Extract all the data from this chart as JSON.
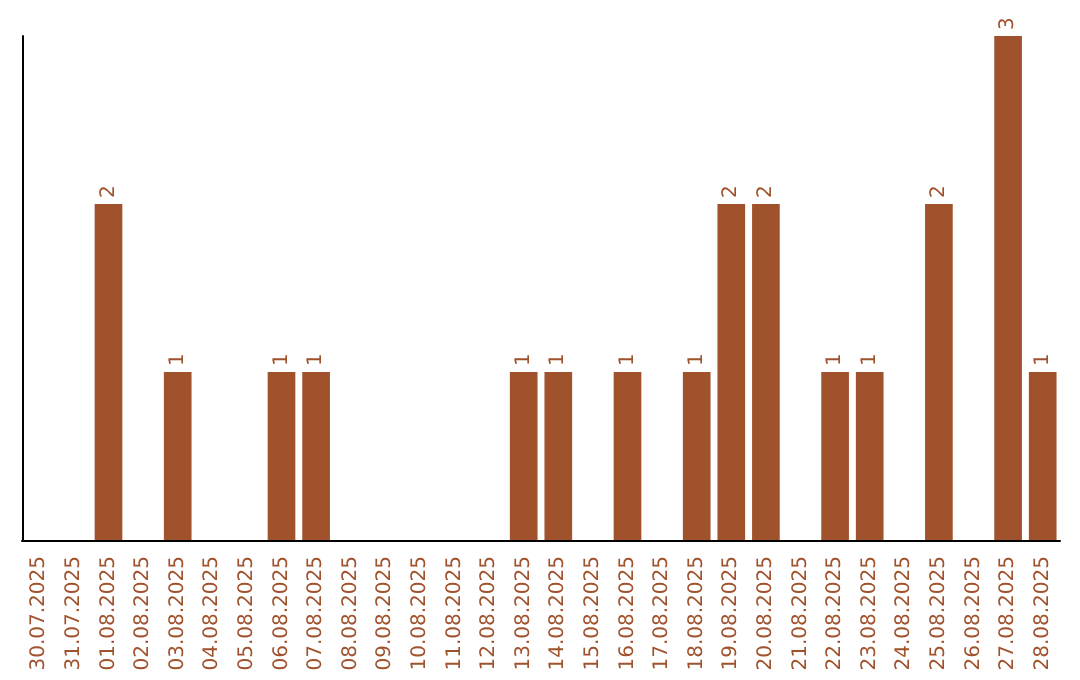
{
  "chart_data": {
    "type": "bar",
    "categories": [
      "30.07.2025",
      "31.07.2025",
      "01.08.2025",
      "02.08.2025",
      "03.08.2025",
      "04.08.2025",
      "05.08.2025",
      "06.08.2025",
      "07.08.2025",
      "08.08.2025",
      "09.08.2025",
      "10.08.2025",
      "11.08.2025",
      "12.08.2025",
      "13.08.2025",
      "14.08.2025",
      "15.08.2025",
      "16.08.2025",
      "17.08.2025",
      "18.08.2025",
      "19.08.2025",
      "20.08.2025",
      "21.08.2025",
      "22.08.2025",
      "23.08.2025",
      "24.08.2025",
      "25.08.2025",
      "26.08.2025",
      "27.08.2025",
      "28.08.2025"
    ],
    "values": [
      0,
      0,
      2,
      0,
      1,
      0,
      0,
      1,
      1,
      0,
      0,
      0,
      0,
      0,
      1,
      1,
      0,
      1,
      0,
      1,
      2,
      2,
      0,
      1,
      1,
      0,
      2,
      0,
      3,
      1
    ],
    "value_labels": [
      null,
      null,
      "2",
      null,
      "1",
      null,
      null,
      "1",
      "1",
      null,
      null,
      null,
      null,
      null,
      "1",
      "1",
      null,
      "1",
      null,
      "1",
      "2",
      "2",
      null,
      "1",
      "1",
      null,
      "2",
      null,
      "3",
      "1"
    ],
    "color": "#a0522d",
    "tick_labels": "x"
  }
}
